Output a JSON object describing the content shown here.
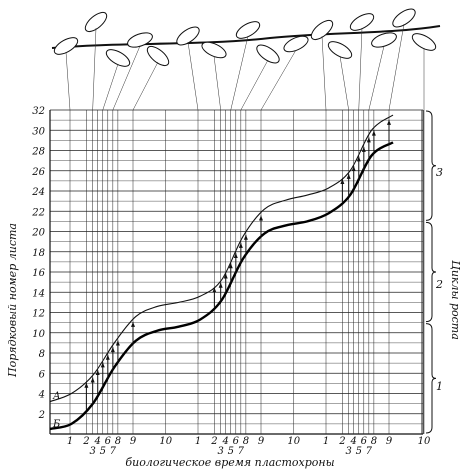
{
  "chart_data": {
    "type": "line",
    "ylabel": "Порядковый номер листа",
    "xlabel": "биологическое время   пластохроны",
    "right_label": "Циклы роста",
    "cycles": [
      "1",
      "2",
      "3"
    ],
    "ylim": [
      0,
      32
    ],
    "yticks": [
      "2",
      "4",
      "6",
      "8",
      "10",
      "12",
      "14",
      "16",
      "18",
      "20",
      "22",
      "24",
      "26",
      "28",
      "30",
      "32"
    ],
    "x_tick_rows": [
      [
        "1",
        "2",
        "4",
        "6",
        "8",
        "9",
        "10",
        "1",
        "2",
        "4",
        "6",
        "8",
        "9",
        "10",
        "1",
        "2",
        "4",
        "6",
        "8",
        "9",
        "10"
      ],
      [
        "3",
        "5",
        "7",
        "3",
        "5",
        "7",
        "3",
        "5",
        "7"
      ]
    ],
    "series": [
      {
        "name": "А",
        "values": [
          3.2,
          4.0,
          5.8,
          9.0,
          11.6,
          12.6,
          13.0,
          13.6,
          15.2,
          19.5,
          22.2,
          23.1,
          23.6,
          24.3,
          26.0,
          30.0,
          31.5
        ]
      },
      {
        "name": "Б",
        "values": [
          0.5,
          1.0,
          3.0,
          6.6,
          9.2,
          10.2,
          10.6,
          11.3,
          13.2,
          17.3,
          19.8,
          20.6,
          21.0,
          21.8,
          23.6,
          27.5,
          28.8
        ]
      }
    ],
    "grid": true,
    "decoration": "branch with leaves"
  }
}
